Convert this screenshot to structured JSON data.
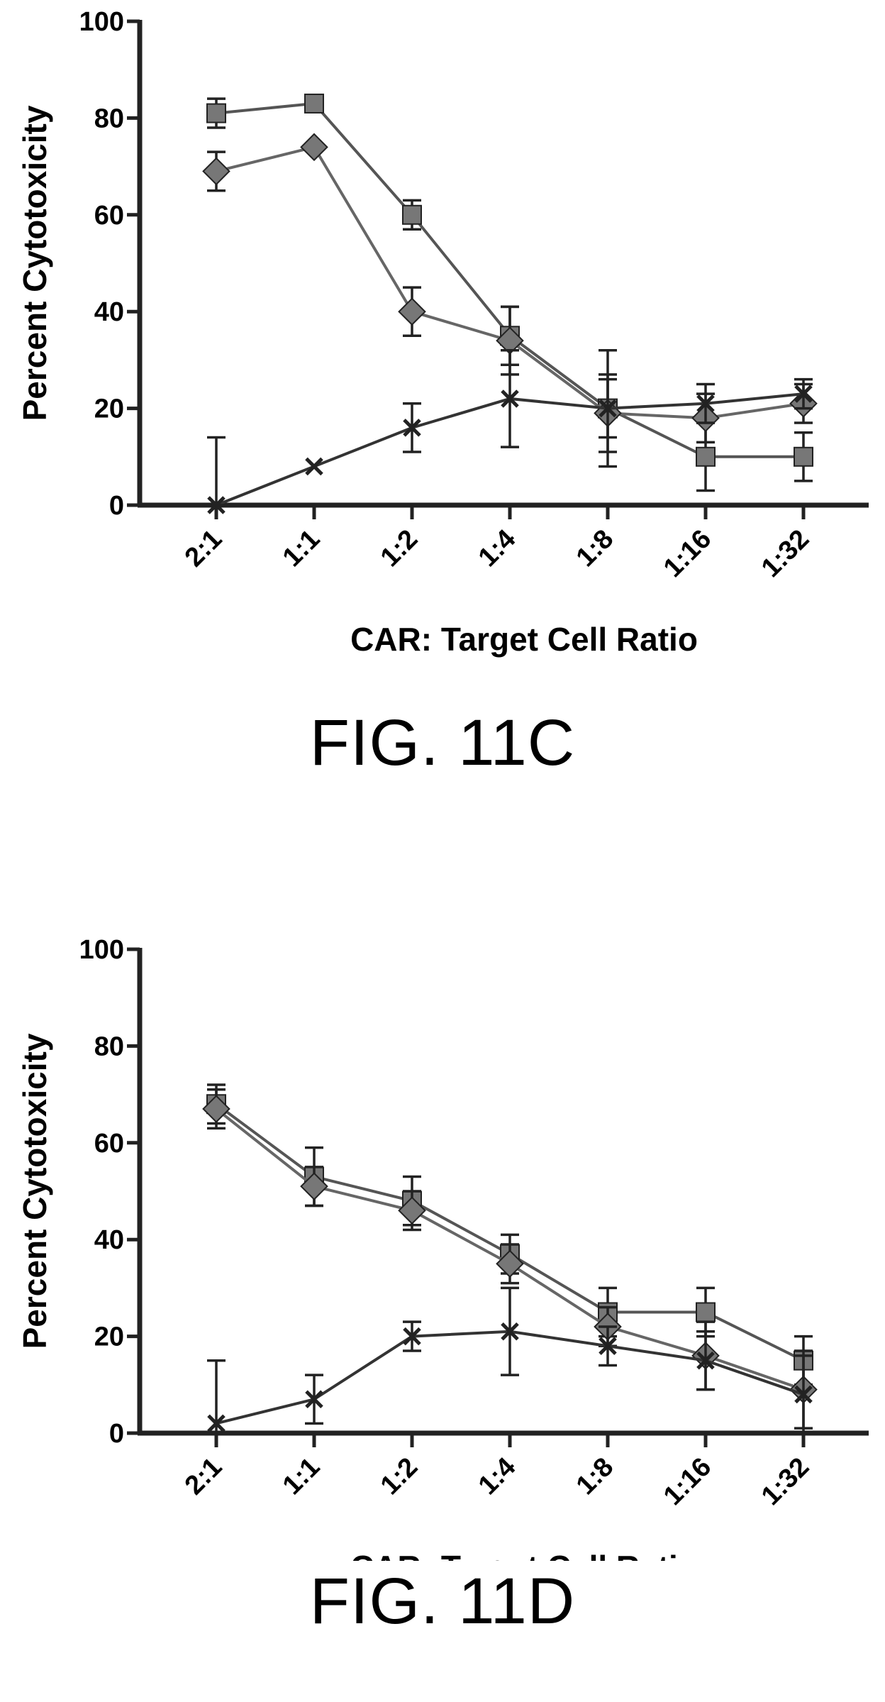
{
  "figures": [
    {
      "caption": "FIG. 11C",
      "chart_data": {
        "type": "line",
        "title": "",
        "xlabel": "CAR: Target Cell Ratio",
        "ylabel": "Percent Cytotoxicity",
        "categories": [
          "2:1",
          "1:1",
          "1:2",
          "1:4",
          "1:8",
          "1:16",
          "1:32"
        ],
        "ylim": [
          0,
          100
        ],
        "yticks": [
          "0",
          "20",
          "40",
          "60",
          "80",
          "100"
        ],
        "grid": false,
        "series": [
          {
            "values": [
              81,
              83,
              60,
              35,
              20,
              10,
              10
            ],
            "errors": [
              3,
              0,
              3,
              6,
              6,
              7,
              5
            ]
          },
          {
            "values": [
              69,
              74,
              40,
              34,
              19,
              18,
              21
            ],
            "errors": [
              4,
              0,
              5,
              7,
              8,
              5,
              4
            ]
          },
          {
            "values": [
              0,
              8,
              16,
              22,
              20,
              21,
              23
            ],
            "errors": [
              14,
              0,
              5,
              10,
              12,
              4,
              3
            ]
          }
        ]
      }
    },
    {
      "caption": "FIG. 11D",
      "chart_data": {
        "type": "line",
        "title": "",
        "xlabel": "CAR: Target Cell Ratio",
        "ylabel": "Percent Cytotoxicity",
        "categories": [
          "2:1",
          "1:1",
          "1:2",
          "1:4",
          "1:8",
          "1:16",
          "1:32"
        ],
        "ylim": [
          0,
          100
        ],
        "yticks": [
          "0",
          "20",
          "40",
          "60",
          "80",
          "100"
        ],
        "grid": false,
        "series": [
          {
            "values": [
              68,
              53,
              48,
              37,
              25,
              25,
              15
            ],
            "errors": [
              4,
              6,
              5,
              4,
              5,
              5,
              5
            ]
          },
          {
            "values": [
              67,
              51,
              46,
              35,
              22,
              16,
              9
            ],
            "errors": [
              4,
              4,
              4,
              4,
              4,
              7,
              8
            ]
          },
          {
            "values": [
              2,
              7,
              20,
              21,
              18,
              15,
              8
            ],
            "errors": [
              13,
              5,
              3,
              9,
              4,
              6,
              8
            ]
          }
        ]
      }
    }
  ]
}
